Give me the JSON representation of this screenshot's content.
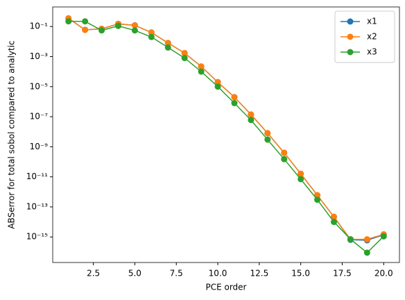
{
  "chart_data": {
    "type": "line",
    "log_y": true,
    "legend": "upper right",
    "xlabel": "PCE order",
    "ylabel": "ABSerror for total sobol compared to analytic",
    "x": [
      1,
      2,
      3,
      4,
      5,
      6,
      7,
      8,
      9,
      10,
      11,
      12,
      13,
      14,
      15,
      16,
      17,
      18,
      19,
      20
    ],
    "series": [
      {
        "name": "x1",
        "color": "#1f77b4",
        "values": [
          0.35,
          0.06,
          0.07,
          0.15,
          0.12,
          0.04,
          0.008,
          0.0017,
          0.00022,
          2e-05,
          2e-06,
          1.4e-07,
          8e-09,
          4e-10,
          1.6e-11,
          6e-13,
          2.2e-14,
          6.5e-16,
          6e-16,
          1.4e-15
        ]
      },
      {
        "name": "x2",
        "color": "#ff7f0e",
        "values": [
          0.35,
          0.06,
          0.07,
          0.15,
          0.12,
          0.04,
          0.008,
          0.0017,
          0.00022,
          2e-05,
          2e-06,
          1.4e-07,
          8e-09,
          4e-10,
          1.6e-11,
          6e-13,
          2.2e-14,
          7e-16,
          7e-16,
          1.5e-15
        ]
      },
      {
        "name": "x3",
        "color": "#2ca02c",
        "values": [
          0.22,
          0.22,
          0.055,
          0.11,
          0.055,
          0.02,
          0.004,
          0.0008,
          0.0001,
          1e-05,
          8e-07,
          6e-08,
          3e-09,
          1.5e-10,
          7e-12,
          3e-13,
          1e-14,
          7e-16,
          9e-17,
          1.1e-15
        ]
      }
    ],
    "xlim": [
      0.05,
      20.95
    ],
    "xticks": [
      2.5,
      {
        "value": 5,
        "label": "5.0"
      },
      7.5,
      {
        "value": 10,
        "label": "10.0"
      },
      12.5,
      {
        "value": 15,
        "label": "15.0"
      },
      17.5,
      {
        "value": 20,
        "label": "20.0"
      }
    ],
    "ylim": [
      2e-17,
      2
    ],
    "yticks": [
      {
        "value": 1e-15,
        "label": "10⁻¹⁵"
      },
      {
        "value": 1e-13,
        "label": "10⁻¹³"
      },
      {
        "value": 1e-11,
        "label": "10⁻¹¹"
      },
      {
        "value": 1e-09,
        "label": "10⁻⁹"
      },
      {
        "value": 1e-07,
        "label": "10⁻⁷"
      },
      {
        "value": 1e-05,
        "label": "10⁻⁵"
      },
      {
        "value": 0.001,
        "label": "10⁻³"
      },
      {
        "value": 0.1,
        "label": "10⁻¹"
      }
    ]
  }
}
